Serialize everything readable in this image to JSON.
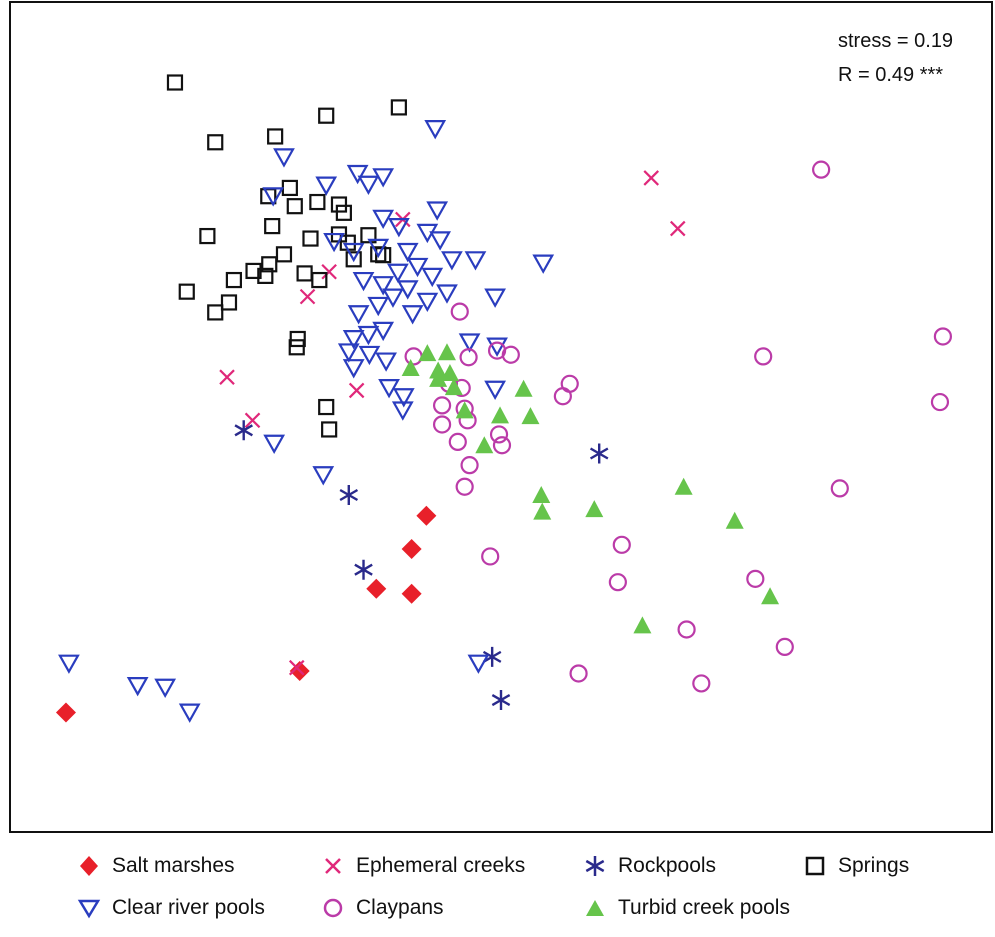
{
  "chart_data": {
    "type": "scatter",
    "title": "",
    "xlabel": "",
    "ylabel": "",
    "xlim": [
      0,
      100
    ],
    "ylim": [
      0,
      100
    ],
    "grid": false,
    "legend_position": "bottom",
    "annotations": [
      "stress = 0.19",
      "R = 0.49 ***"
    ],
    "series": [
      {
        "name": "Salt marshes",
        "marker": "diamond-filled",
        "color": "#e8202a",
        "points": [
          [
            5.7,
            14.4
          ],
          [
            42.4,
            38.1
          ],
          [
            40.9,
            34.1
          ],
          [
            37.3,
            29.3
          ],
          [
            40.9,
            28.7
          ],
          [
            29.5,
            19.4
          ]
        ]
      },
      {
        "name": "Ephemeral creeks",
        "marker": "x",
        "color": "#e0287a",
        "points": [
          [
            65.3,
            78.8
          ],
          [
            68.0,
            72.7
          ],
          [
            40.0,
            73.8
          ],
          [
            30.3,
            64.5
          ],
          [
            22.1,
            54.8
          ],
          [
            35.3,
            53.2
          ],
          [
            24.7,
            49.6
          ],
          [
            29.2,
            19.8
          ],
          [
            32.5,
            67.5
          ]
        ]
      },
      {
        "name": "Rockpools",
        "marker": "asterisk",
        "color": "#2a2a8c",
        "points": [
          [
            23.8,
            48.4
          ],
          [
            34.5,
            40.6
          ],
          [
            60.0,
            45.6
          ],
          [
            36.0,
            31.6
          ],
          [
            49.1,
            21.1
          ],
          [
            50.0,
            15.9
          ]
        ]
      },
      {
        "name": "Springs",
        "marker": "square-open",
        "color": "#111111",
        "points": [
          [
            16.8,
            90.3
          ],
          [
            32.2,
            86.3
          ],
          [
            39.6,
            87.3
          ],
          [
            20.9,
            83.1
          ],
          [
            27.0,
            83.8
          ],
          [
            26.3,
            76.6
          ],
          [
            28.5,
            77.6
          ],
          [
            29.0,
            75.4
          ],
          [
            31.3,
            75.9
          ],
          [
            33.5,
            75.6
          ],
          [
            34.0,
            74.6
          ],
          [
            26.7,
            73.0
          ],
          [
            20.1,
            71.8
          ],
          [
            30.6,
            71.5
          ],
          [
            33.5,
            72.0
          ],
          [
            36.5,
            71.9
          ],
          [
            37.5,
            69.6
          ],
          [
            27.9,
            69.6
          ],
          [
            26.4,
            68.4
          ],
          [
            24.8,
            67.6
          ],
          [
            26.0,
            67.0
          ],
          [
            22.8,
            66.5
          ],
          [
            30.0,
            67.3
          ],
          [
            31.5,
            66.5
          ],
          [
            18.0,
            65.1
          ],
          [
            22.3,
            63.8
          ],
          [
            20.9,
            62.6
          ],
          [
            29.3,
            59.4
          ],
          [
            29.2,
            58.4
          ],
          [
            32.2,
            51.2
          ],
          [
            32.5,
            48.5
          ],
          [
            35.0,
            69.0
          ],
          [
            34.4,
            71.0
          ],
          [
            38.0,
            69.5
          ]
        ]
      },
      {
        "name": "Clear river pools",
        "marker": "triangle-down-open",
        "color": "#2a3dbf",
        "points": [
          [
            43.3,
            84.8
          ],
          [
            27.9,
            81.4
          ],
          [
            35.4,
            79.4
          ],
          [
            36.5,
            78.1
          ],
          [
            38.0,
            79.0
          ],
          [
            32.2,
            78.0
          ],
          [
            26.8,
            76.7
          ],
          [
            43.5,
            75.0
          ],
          [
            38.0,
            74.0
          ],
          [
            39.6,
            73.0
          ],
          [
            42.5,
            72.3
          ],
          [
            43.8,
            71.4
          ],
          [
            33.0,
            71.2
          ],
          [
            35.0,
            70.0
          ],
          [
            37.5,
            70.5
          ],
          [
            40.5,
            70.0
          ],
          [
            45.0,
            69.0
          ],
          [
            47.4,
            69.0
          ],
          [
            54.3,
            68.6
          ],
          [
            41.5,
            68.2
          ],
          [
            39.5,
            67.5
          ],
          [
            43.0,
            67.0
          ],
          [
            38.0,
            66.0
          ],
          [
            36.0,
            66.5
          ],
          [
            40.5,
            65.5
          ],
          [
            44.5,
            65.0
          ],
          [
            42.5,
            64.0
          ],
          [
            39.0,
            64.5
          ],
          [
            37.5,
            63.5
          ],
          [
            35.5,
            62.5
          ],
          [
            41.0,
            62.5
          ],
          [
            49.4,
            64.5
          ],
          [
            38.0,
            60.5
          ],
          [
            36.5,
            60.0
          ],
          [
            35.0,
            59.5
          ],
          [
            46.8,
            59.1
          ],
          [
            49.6,
            58.6
          ],
          [
            34.5,
            57.9
          ],
          [
            36.6,
            57.6
          ],
          [
            38.3,
            56.8
          ],
          [
            35.0,
            56.0
          ],
          [
            38.6,
            53.6
          ],
          [
            40.1,
            52.5
          ],
          [
            40.0,
            50.9
          ],
          [
            49.4,
            53.4
          ],
          [
            26.9,
            46.9
          ],
          [
            31.9,
            43.1
          ],
          [
            6.0,
            20.4
          ],
          [
            13.0,
            17.7
          ],
          [
            15.8,
            17.5
          ],
          [
            18.3,
            14.5
          ],
          [
            47.7,
            20.4
          ]
        ]
      },
      {
        "name": "Claypans",
        "marker": "circle-open",
        "color": "#bb3ba8",
        "points": [
          [
            82.6,
            79.8
          ],
          [
            95.0,
            59.7
          ],
          [
            76.7,
            57.3
          ],
          [
            94.7,
            51.8
          ],
          [
            84.5,
            41.4
          ],
          [
            45.8,
            62.7
          ],
          [
            41.1,
            57.3
          ],
          [
            46.7,
            57.2
          ],
          [
            49.6,
            58.0
          ],
          [
            51.0,
            57.5
          ],
          [
            57.0,
            54.0
          ],
          [
            56.3,
            52.5
          ],
          [
            44.7,
            54.0
          ],
          [
            46.0,
            53.5
          ],
          [
            44.0,
            51.4
          ],
          [
            46.3,
            51.0
          ],
          [
            44.0,
            49.1
          ],
          [
            46.6,
            49.6
          ],
          [
            49.8,
            47.9
          ],
          [
            50.1,
            46.6
          ],
          [
            45.6,
            47.0
          ],
          [
            46.8,
            44.2
          ],
          [
            46.3,
            41.6
          ],
          [
            48.9,
            33.2
          ],
          [
            62.3,
            34.6
          ],
          [
            61.9,
            30.1
          ],
          [
            75.9,
            30.5
          ],
          [
            68.9,
            24.4
          ],
          [
            78.9,
            22.3
          ],
          [
            57.9,
            19.1
          ],
          [
            70.4,
            17.9
          ]
        ]
      },
      {
        "name": "Turbid creek pools",
        "marker": "triangle-up-filled",
        "color": "#66c44b",
        "points": [
          [
            42.5,
            57.7
          ],
          [
            44.5,
            57.8
          ],
          [
            40.8,
            55.9
          ],
          [
            43.6,
            55.6
          ],
          [
            44.8,
            55.3
          ],
          [
            43.6,
            54.6
          ],
          [
            45.2,
            53.6
          ],
          [
            52.3,
            53.4
          ],
          [
            46.3,
            50.8
          ],
          [
            49.9,
            50.2
          ],
          [
            53.0,
            50.1
          ],
          [
            48.3,
            46.6
          ],
          [
            54.1,
            40.6
          ],
          [
            54.2,
            38.6
          ],
          [
            59.5,
            38.9
          ],
          [
            68.6,
            41.6
          ],
          [
            73.8,
            37.5
          ],
          [
            77.4,
            28.4
          ],
          [
            64.4,
            24.9
          ]
        ]
      }
    ]
  },
  "stats": {
    "stress": "stress = 0.19",
    "r": "R = 0.49 ***"
  },
  "legend": {
    "items": [
      {
        "label": "Salt marshes",
        "icon": "diamond-icon"
      },
      {
        "label": "Ephemeral creeks",
        "icon": "x-icon"
      },
      {
        "label": "Rockpools",
        "icon": "asterisk-icon"
      },
      {
        "label": "Springs",
        "icon": "square-icon"
      },
      {
        "label": "Clear river pools",
        "icon": "triangle-down-icon"
      },
      {
        "label": "Claypans",
        "icon": "circle-icon"
      },
      {
        "label": "Turbid creek pools",
        "icon": "triangle-up-icon"
      }
    ]
  }
}
